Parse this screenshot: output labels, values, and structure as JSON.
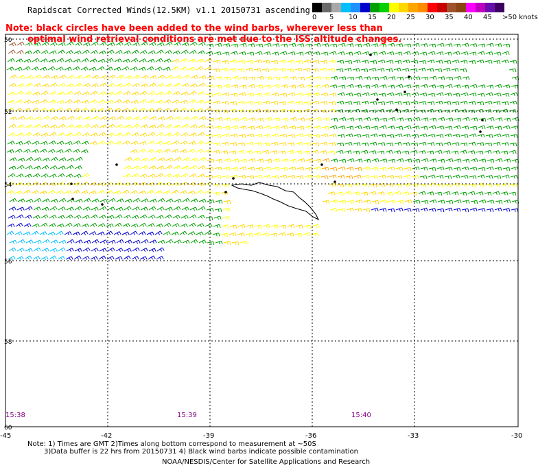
{
  "header": {
    "title": "Rapidscat Corrected Winds(12.5KM) v1.1 20150731 ascending",
    "note_line1": "Note: black circles have been added to the wind barbs, wherever less than",
    "note_line2": "optimal wind retrieval conditions are met due to the ISS altitude changes."
  },
  "legend": {
    "labels": [
      "0",
      "5",
      "10",
      "15",
      "20",
      "25",
      "30",
      "35",
      "40",
      "45",
      ">50 knots"
    ],
    "colors": [
      "#000000",
      "#696969",
      "#a8a8a8",
      "#00bfff",
      "#1e90ff",
      "#0000cd",
      "#00a000",
      "#00d000",
      "#ffff00",
      "#ffd700",
      "#ffa500",
      "#ff8c00",
      "#ff0000",
      "#c80000",
      "#a0522d",
      "#8b4513",
      "#ff00ff",
      "#c000c0",
      "#6a0dad",
      "#3c0060"
    ]
  },
  "map": {
    "lon_labels": [
      "-45",
      "-42",
      "-39",
      "-36",
      "-33",
      "-30"
    ],
    "lat_labels": [
      "50",
      "52",
      "54",
      "56",
      "58",
      "60"
    ],
    "time_labels": [
      "15:38",
      "15:39",
      "15:40"
    ],
    "barb_color_key": {
      "green": "#00a000",
      "yellow": "#ffd700",
      "light_yellow": "#ffff00",
      "orange": "#ffa500",
      "blue": "#0000cd",
      "cyan": "#00bfff",
      "brown": "#a0522d"
    }
  },
  "footer": {
    "note_line1": "Note: 1) Times are GMT 2)Times along bottom correspond to measurement at ~50S",
    "note_line2": "3)Data buffer is 22 hrs from 20150731 4) Black wind barbs indicate possible contamination",
    "credit": "NOAA/NESDIS/Center for Satellite Applications and Research"
  }
}
